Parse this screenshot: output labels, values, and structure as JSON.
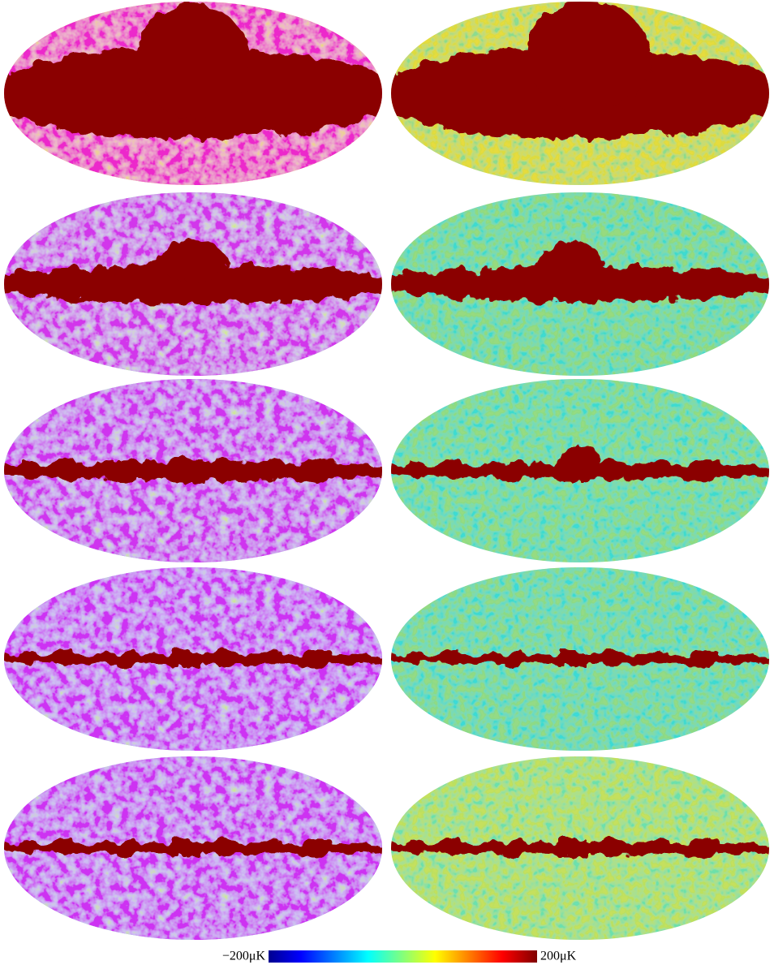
{
  "colorbar": {
    "min_label": "−200μK",
    "max_label": "200μK"
  }
}
